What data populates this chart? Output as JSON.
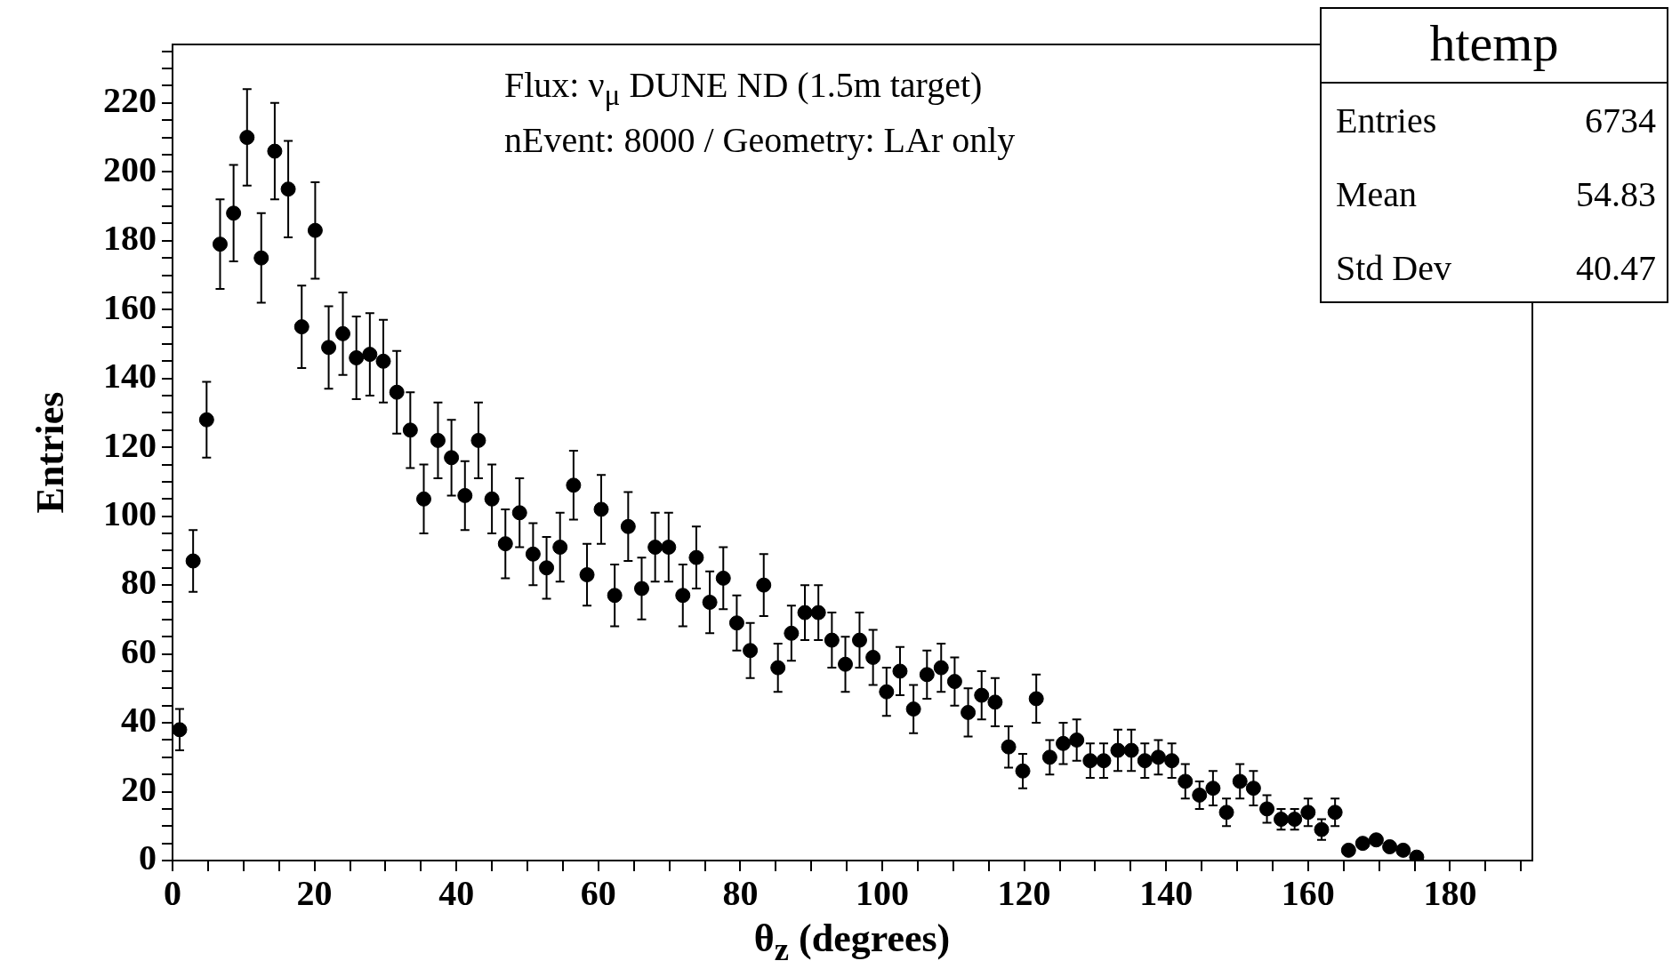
{
  "chart_data": {
    "type": "scatter",
    "title": "htemp",
    "xlabel": "θ$_{z}$ (degrees)",
    "ylabel": "Entries",
    "annotations": [
      "Flux: ν$_{μ}$ DUNE ND (1.5m target)",
      "nEvent: 8000 / Geometry: LAr only",
      "Entries 6734",
      "Mean 54.83",
      "Std Dev 40.47"
    ],
    "x": [
      1.0,
      2.9,
      4.8,
      6.7,
      8.6,
      10.5,
      12.5,
      14.4,
      16.3,
      18.2,
      20.1,
      22.0,
      24.0,
      25.9,
      27.8,
      29.7,
      31.6,
      33.5,
      35.4,
      37.4,
      39.3,
      41.2,
      43.1,
      45.0,
      46.9,
      48.9,
      50.8,
      52.7,
      54.6,
      56.5,
      58.4,
      60.4,
      62.3,
      64.2,
      66.1,
      68.0,
      69.9,
      71.9,
      73.8,
      75.7,
      77.6,
      79.5,
      81.4,
      83.3,
      85.3,
      87.2,
      89.1,
      91.0,
      92.9,
      94.8,
      96.8,
      98.7,
      100.6,
      102.5,
      104.4,
      106.3,
      108.3,
      110.2,
      112.1,
      114.0,
      115.9,
      117.8,
      119.8,
      121.7,
      123.6,
      125.5,
      127.4,
      129.3,
      131.2,
      133.2,
      135.1,
      137.0,
      138.9,
      140.8,
      142.7,
      144.7,
      146.6,
      148.5,
      150.4,
      152.3,
      154.2,
      156.2,
      158.1,
      160.0,
      161.9,
      163.8,
      165.7,
      167.7,
      169.6,
      171.5,
      173.4,
      175.3
    ],
    "values": [
      38,
      87,
      128,
      179,
      188,
      210,
      175,
      206,
      195,
      155,
      183,
      149,
      153,
      146,
      147,
      145,
      136,
      125,
      105,
      122,
      117,
      106,
      122,
      105,
      92,
      101,
      89,
      85,
      91,
      109,
      83,
      102,
      77,
      97,
      79,
      91,
      91,
      77,
      88,
      75,
      82,
      69,
      61,
      80,
      56,
      66,
      72,
      72,
      64,
      57,
      64,
      59,
      49,
      55,
      44,
      54,
      56,
      52,
      43,
      48,
      46,
      33,
      26,
      47,
      30,
      34,
      35,
      29,
      29,
      32,
      32,
      29,
      30,
      29,
      23,
      19,
      21,
      14,
      23,
      21,
      15,
      12,
      12,
      14,
      9,
      14,
      3,
      5,
      6,
      4,
      3,
      1
    ],
    "errors": [
      6,
      9,
      11,
      13,
      14,
      14,
      13,
      14,
      14,
      12,
      14,
      12,
      12,
      12,
      12,
      12,
      12,
      11,
      10,
      11,
      11,
      10,
      11,
      10,
      10,
      10,
      9,
      9,
      10,
      10,
      9,
      10,
      9,
      10,
      9,
      10,
      10,
      9,
      9,
      9,
      9,
      8,
      8,
      9,
      7,
      8,
      8,
      8,
      8,
      8,
      8,
      8,
      7,
      7,
      7,
      7,
      7,
      7,
      7,
      7,
      7,
      6,
      5,
      7,
      5,
      6,
      6,
      5,
      5,
      6,
      6,
      5,
      5,
      5,
      5,
      4,
      5,
      4,
      5,
      5,
      4,
      3,
      3,
      4,
      3,
      4,
      null,
      null,
      null,
      null,
      null,
      null
    ],
    "color": "#000000",
    "marker": "circle",
    "legend": false,
    "grid": false,
    "xlim": [
      0,
      191.6
    ],
    "xticks": [
      0,
      {
        "value": 5,
        "label": null
      },
      {
        "value": 10,
        "label": null
      },
      {
        "value": 15,
        "label": null
      },
      20,
      {
        "value": 25,
        "label": null
      },
      {
        "value": 30,
        "label": null
      },
      {
        "value": 35,
        "label": null
      },
      40,
      {
        "value": 45,
        "label": null
      },
      {
        "value": 50,
        "label": null
      },
      {
        "value": 55,
        "label": null
      },
      60,
      {
        "value": 65,
        "label": null
      },
      {
        "value": 70,
        "label": null
      },
      {
        "value": 75,
        "label": null
      },
      80,
      {
        "value": 85,
        "label": null
      },
      {
        "value": 90,
        "label": null
      },
      {
        "value": 95,
        "label": null
      },
      100,
      {
        "value": 105,
        "label": null
      },
      {
        "value": 110,
        "label": null
      },
      {
        "value": 115,
        "label": null
      },
      120,
      {
        "value": 125,
        "label": null
      },
      {
        "value": 130,
        "label": null
      },
      {
        "value": 135,
        "label": null
      },
      140,
      {
        "value": 145,
        "label": null
      },
      {
        "value": 150,
        "label": null
      },
      {
        "value": 155,
        "label": null
      },
      160,
      {
        "value": 165,
        "label": null
      },
      {
        "value": 170,
        "label": null
      },
      {
        "value": 175,
        "label": null
      },
      180,
      {
        "value": 185,
        "label": null
      },
      {
        "value": 190,
        "label": null
      }
    ],
    "ylim": [
      0,
      237
    ],
    "yticks": [
      0,
      {
        "value": 5,
        "label": null
      },
      {
        "value": 10,
        "label": null
      },
      {
        "value": 15,
        "label": null
      },
      20,
      {
        "value": 25,
        "label": null
      },
      {
        "value": 30,
        "label": null
      },
      {
        "value": 35,
        "label": null
      },
      40,
      {
        "value": 45,
        "label": null
      },
      {
        "value": 50,
        "label": null
      },
      {
        "value": 55,
        "label": null
      },
      60,
      {
        "value": 65,
        "label": null
      },
      {
        "value": 70,
        "label": null
      },
      {
        "value": 75,
        "label": null
      },
      80,
      {
        "value": 85,
        "label": null
      },
      {
        "value": 90,
        "label": null
      },
      {
        "value": 95,
        "label": null
      },
      100,
      {
        "value": 105,
        "label": null
      },
      {
        "value": 110,
        "label": null
      },
      {
        "value": 115,
        "label": null
      },
      120,
      {
        "value": 125,
        "label": null
      },
      {
        "value": 130,
        "label": null
      },
      {
        "value": 135,
        "label": null
      },
      140,
      {
        "value": 145,
        "label": null
      },
      {
        "value": 150,
        "label": null
      },
      {
        "value": 155,
        "label": null
      },
      160,
      {
        "value": 165,
        "label": null
      },
      {
        "value": 170,
        "label": null
      },
      {
        "value": 175,
        "label": null
      },
      180,
      {
        "value": 185,
        "label": null
      },
      {
        "value": 190,
        "label": null
      },
      {
        "value": 195,
        "label": null
      },
      200,
      {
        "value": 205,
        "label": null
      },
      {
        "value": 210,
        "label": null
      },
      {
        "value": 215,
        "label": null
      },
      220,
      {
        "value": 225,
        "label": null
      },
      {
        "value": 230,
        "label": null
      },
      {
        "value": 235,
        "label": null
      }
    ]
  }
}
